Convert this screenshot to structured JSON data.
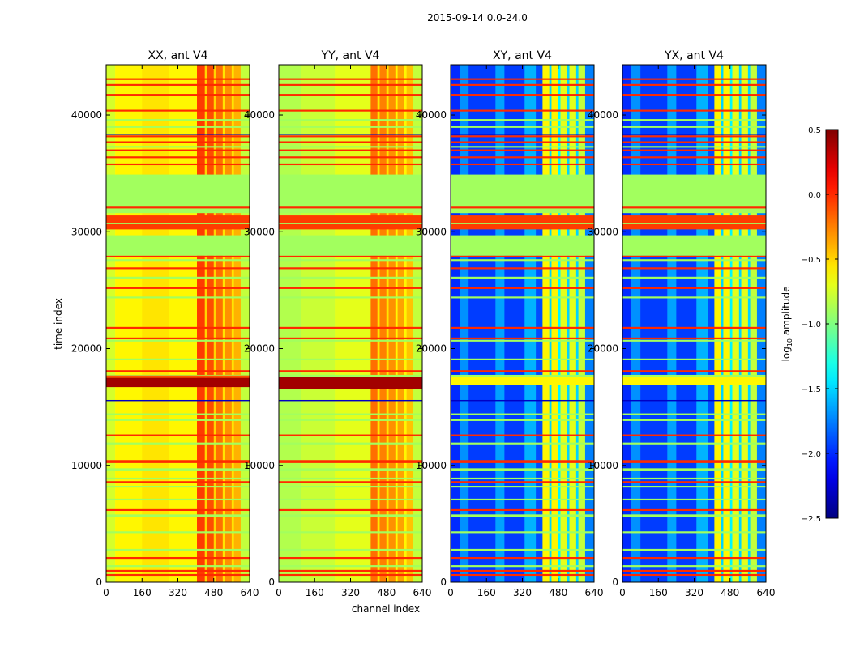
{
  "figure": {
    "suptitle": "2015-09-14 0.0-24.0",
    "xlabel": "channel index",
    "ylabel": "time index"
  },
  "colorbar": {
    "label_base": "log",
    "label_sub": "10",
    "label_rest": " amplitude",
    "vmin": -2.5,
    "vmax": 0.5,
    "ticks": [
      "0.5",
      "0.0",
      "−0.5",
      "−1.0",
      "−1.5",
      "−2.0",
      "−2.5"
    ],
    "tick_values": [
      0.5,
      0.0,
      -0.5,
      -1.0,
      -1.5,
      -2.0,
      -2.5
    ],
    "colormap": "jet"
  },
  "chart_data": [
    {
      "type": "heatmap",
      "title": "XX, ant V4",
      "xlim": [
        0,
        640
      ],
      "ylim": [
        0,
        44300
      ],
      "xticks": [
        "0",
        "160",
        "320",
        "480",
        "640"
      ],
      "xtick_values": [
        0,
        160,
        320,
        480,
        640
      ],
      "yticks": [
        "0",
        "10000",
        "20000",
        "30000",
        "40000"
      ],
      "ytick_values": [
        0,
        10000,
        20000,
        30000,
        40000
      ],
      "columns": [
        [
          0,
          40,
          -0.75
        ],
        [
          40,
          160,
          -0.6
        ],
        [
          160,
          280,
          -0.55
        ],
        [
          280,
          405,
          -0.6
        ],
        [
          405,
          440,
          -0.05
        ],
        [
          440,
          450,
          -0.5
        ],
        [
          450,
          480,
          -0.1
        ],
        [
          480,
          490,
          -0.5
        ],
        [
          490,
          520,
          -0.2
        ],
        [
          520,
          530,
          -0.55
        ],
        [
          530,
          560,
          -0.3
        ],
        [
          560,
          570,
          -0.55
        ],
        [
          570,
          600,
          -0.4
        ],
        [
          600,
          640,
          -0.8
        ]
      ],
      "extra_stripes": [
        [
          16700,
          17500,
          0.4
        ],
        [
          17500,
          17700,
          -0.1
        ]
      ]
    },
    {
      "type": "heatmap",
      "title": "YY, ant V4",
      "xlim": [
        0,
        640
      ],
      "ylim": [
        0,
        44300
      ],
      "xticks": [
        "0",
        "160",
        "320",
        "480",
        "640"
      ],
      "xtick_values": [
        0,
        160,
        320,
        480,
        640
      ],
      "yticks": [
        "0",
        "10000",
        "20000",
        "30000",
        "40000"
      ],
      "ytick_values": [
        0,
        10000,
        20000,
        30000,
        40000
      ],
      "columns": [
        [
          0,
          100,
          -0.85
        ],
        [
          100,
          250,
          -0.78
        ],
        [
          250,
          410,
          -0.7
        ],
        [
          410,
          440,
          -0.2
        ],
        [
          440,
          450,
          -0.55
        ],
        [
          450,
          480,
          -0.25
        ],
        [
          480,
          490,
          -0.55
        ],
        [
          490,
          520,
          -0.3
        ],
        [
          520,
          530,
          -0.6
        ],
        [
          530,
          560,
          -0.35
        ],
        [
          560,
          570,
          -0.6
        ],
        [
          570,
          600,
          -0.45
        ],
        [
          600,
          640,
          -0.8
        ]
      ],
      "extra_stripes": [
        [
          16500,
          17600,
          0.4
        ]
      ]
    },
    {
      "type": "heatmap",
      "title": "XY, ant V4",
      "xlim": [
        0,
        640
      ],
      "ylim": [
        0,
        44300
      ],
      "xticks": [
        "0",
        "160",
        "320",
        "480",
        "640"
      ],
      "xtick_values": [
        0,
        160,
        320,
        480,
        640
      ],
      "yticks": [
        "0",
        "10000",
        "20000",
        "30000",
        "40000"
      ],
      "ytick_values": [
        0,
        10000,
        20000,
        30000,
        40000
      ],
      "columns": [
        [
          0,
          40,
          -2.0
        ],
        [
          40,
          80,
          -1.7
        ],
        [
          80,
          200,
          -1.95
        ],
        [
          200,
          240,
          -1.65
        ],
        [
          240,
          330,
          -1.95
        ],
        [
          330,
          380,
          -1.6
        ],
        [
          380,
          410,
          -1.9
        ],
        [
          410,
          440,
          -0.6
        ],
        [
          440,
          450,
          -1.5
        ],
        [
          450,
          480,
          -0.6
        ],
        [
          480,
          490,
          -1.4
        ],
        [
          490,
          520,
          -0.7
        ],
        [
          520,
          530,
          -1.5
        ],
        [
          530,
          560,
          -0.7
        ],
        [
          560,
          570,
          -1.5
        ],
        [
          570,
          600,
          -0.8
        ],
        [
          600,
          640,
          -1.75
        ]
      ],
      "extra_stripes": [
        [
          16900,
          17600,
          -0.6
        ]
      ]
    },
    {
      "type": "heatmap",
      "title": "YX, ant V4",
      "xlim": [
        0,
        640
      ],
      "ylim": [
        0,
        44300
      ],
      "xticks": [
        "0",
        "160",
        "320",
        "480",
        "640"
      ],
      "xtick_values": [
        0,
        160,
        320,
        480,
        640
      ],
      "yticks": [
        "0",
        "10000",
        "20000",
        "30000",
        "40000"
      ],
      "ytick_values": [
        0,
        10000,
        20000,
        30000,
        40000
      ],
      "columns": [
        [
          0,
          40,
          -2.0
        ],
        [
          40,
          80,
          -1.7
        ],
        [
          80,
          200,
          -1.95
        ],
        [
          200,
          240,
          -1.65
        ],
        [
          240,
          330,
          -1.95
        ],
        [
          330,
          380,
          -1.6
        ],
        [
          380,
          410,
          -1.9
        ],
        [
          410,
          440,
          -0.6
        ],
        [
          440,
          450,
          -1.5
        ],
        [
          450,
          480,
          -0.6
        ],
        [
          480,
          490,
          -1.4
        ],
        [
          490,
          520,
          -0.7
        ],
        [
          520,
          530,
          -1.5
        ],
        [
          530,
          560,
          -0.7
        ],
        [
          560,
          570,
          -1.5
        ],
        [
          570,
          600,
          -0.8
        ],
        [
          600,
          640,
          -1.75
        ]
      ],
      "extra_stripes": [
        [
          16900,
          17600,
          -0.6
        ]
      ]
    }
  ],
  "shared_stripes": [
    [
      31600,
      34900,
      -0.9
    ],
    [
      27950,
      29700,
      -0.9
    ],
    [
      30200,
      31400,
      -0.05
    ],
    [
      30650,
      30750,
      -0.9
    ],
    [
      43000,
      43150,
      0.0
    ],
    [
      42500,
      42650,
      0.0
    ],
    [
      41650,
      41800,
      0.0
    ],
    [
      40300,
      40450,
      0.0
    ],
    [
      38100,
      38250,
      0.0
    ],
    [
      37600,
      37750,
      0.0
    ],
    [
      36900,
      37050,
      0.0
    ],
    [
      36300,
      36450,
      0.0
    ],
    [
      35700,
      35850,
      0.0
    ],
    [
      32000,
      32150,
      0.0
    ],
    [
      27800,
      27950,
      0.0
    ],
    [
      26800,
      26950,
      0.0
    ],
    [
      25100,
      25250,
      0.0
    ],
    [
      21700,
      21850,
      0.0
    ],
    [
      20800,
      20950,
      0.0
    ],
    [
      18000,
      18150,
      0.0
    ],
    [
      12500,
      12650,
      0.0
    ],
    [
      10200,
      10450,
      0.0
    ],
    [
      8500,
      8650,
      0.0
    ],
    [
      6100,
      6250,
      0.0
    ],
    [
      2000,
      2150,
      0.0
    ],
    [
      900,
      1050,
      0.0
    ],
    [
      550,
      700,
      0.0
    ],
    [
      39500,
      39650,
      -0.9
    ],
    [
      38900,
      39050,
      -0.9
    ],
    [
      37200,
      37350,
      -0.9
    ],
    [
      33400,
      33550,
      -0.9
    ],
    [
      27500,
      27650,
      -0.9
    ],
    [
      26000,
      26150,
      -0.9
    ],
    [
      24300,
      24450,
      -0.9
    ],
    [
      20600,
      20750,
      -0.9
    ],
    [
      19000,
      19150,
      -0.9
    ],
    [
      17600,
      17750,
      -0.9
    ],
    [
      14300,
      14450,
      -0.9
    ],
    [
      13800,
      13950,
      -0.9
    ],
    [
      11800,
      11950,
      -0.9
    ],
    [
      9500,
      9750,
      -0.9
    ],
    [
      8800,
      8950,
      -0.9
    ],
    [
      8100,
      8250,
      -0.9
    ],
    [
      7000,
      7150,
      -0.9
    ],
    [
      5600,
      5800,
      -0.9
    ],
    [
      4200,
      4350,
      -0.9
    ],
    [
      2700,
      2850,
      -0.9
    ],
    [
      1300,
      1450,
      -0.9
    ],
    [
      38300,
      38400,
      -2.3
    ],
    [
      15500,
      15600,
      -2.3
    ]
  ]
}
